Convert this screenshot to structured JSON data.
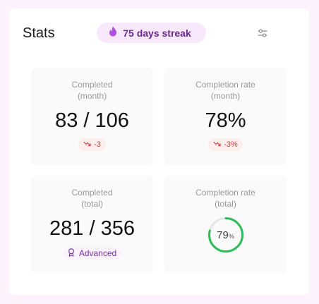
{
  "header": {
    "title": "Stats",
    "streak_label": "75 days streak",
    "streak_icon": "flame-icon",
    "filter_icon": "sliders-icon"
  },
  "tiles": [
    {
      "label_line1": "Completed",
      "label_line2": "(month)",
      "value": "83 / 106",
      "delta": "-3",
      "delta_icon": "trend-down-icon"
    },
    {
      "label_line1": "Completion rate",
      "label_line2": "(month)",
      "value": "78%",
      "delta": "-3%",
      "delta_icon": "trend-down-icon"
    },
    {
      "label_line1": "Completed",
      "label_line2": "(total)",
      "value": "281 / 356",
      "badge": "Advanced",
      "badge_icon": "award-icon"
    },
    {
      "label_line1": "Completion rate",
      "label_line2": "(total)",
      "ring_value": "79",
      "ring_unit": "%",
      "ring_percent": 79
    }
  ],
  "colors": {
    "accent_purple": "#a64fd6",
    "streak_text": "#6b2a8c",
    "negative_red": "#e03a3a",
    "ring_green": "#2ebd59",
    "ring_track": "#e6e6e6"
  }
}
